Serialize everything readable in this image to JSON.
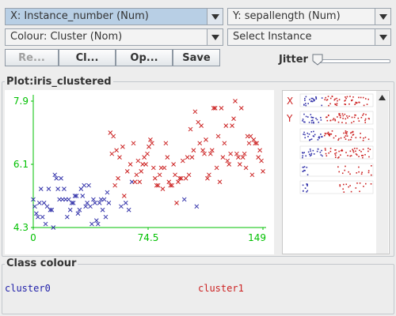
{
  "selectors": {
    "x_axis": "X: Instance_number (Num)",
    "y_axis": "Y: sepallength (Num)",
    "colour": "Colour: Cluster (Nom)",
    "instance": "Select Instance"
  },
  "buttons": {
    "reset": "Re...",
    "clear": "Cl...",
    "open": "Op...",
    "save": "Save"
  },
  "jitter": {
    "label": "Jitter",
    "value": 0
  },
  "plot": {
    "title": "Plot:iris_clustered",
    "side_labels": {
      "x": "X",
      "y": "Y"
    }
  },
  "colors": {
    "cluster0": "#3333aa",
    "cluster1": "#cc2222",
    "axis": "#00c000"
  },
  "class_colour": {
    "title": "Class colour",
    "items": [
      {
        "label": "cluster0",
        "color": "#2222aa"
      },
      {
        "label": "cluster1",
        "color": "#cc2222"
      }
    ]
  },
  "chart_data": {
    "type": "scatter",
    "title": "",
    "xlabel": "",
    "ylabel": "",
    "xlim": [
      0,
      149
    ],
    "ylim": [
      4.3,
      7.9
    ],
    "x_ticks": [
      "0",
      "74.5",
      "149"
    ],
    "y_ticks": [
      "7.9",
      "6.1",
      "4.3"
    ],
    "grid": false,
    "series": [
      {
        "name": "cluster0",
        "points": [
          [
            0,
            5.1
          ],
          [
            1,
            4.9
          ],
          [
            2,
            4.7
          ],
          [
            3,
            4.6
          ],
          [
            4,
            5.0
          ],
          [
            5,
            5.4
          ],
          [
            6,
            4.6
          ],
          [
            7,
            5.0
          ],
          [
            8,
            4.4
          ],
          [
            9,
            4.9
          ],
          [
            10,
            5.4
          ],
          [
            11,
            4.8
          ],
          [
            12,
            4.8
          ],
          [
            13,
            4.3
          ],
          [
            14,
            5.8
          ],
          [
            15,
            5.7
          ],
          [
            16,
            5.4
          ],
          [
            17,
            5.1
          ],
          [
            18,
            5.7
          ],
          [
            19,
            5.1
          ],
          [
            20,
            5.4
          ],
          [
            21,
            5.1
          ],
          [
            22,
            4.6
          ],
          [
            23,
            5.1
          ],
          [
            24,
            4.8
          ],
          [
            25,
            5.0
          ],
          [
            26,
            5.0
          ],
          [
            27,
            5.2
          ],
          [
            28,
            5.2
          ],
          [
            29,
            4.7
          ],
          [
            30,
            4.8
          ],
          [
            31,
            5.4
          ],
          [
            32,
            5.2
          ],
          [
            33,
            5.5
          ],
          [
            34,
            4.9
          ],
          [
            35,
            5.0
          ],
          [
            36,
            5.5
          ],
          [
            37,
            4.9
          ],
          [
            38,
            4.4
          ],
          [
            39,
            5.1
          ],
          [
            40,
            5.0
          ],
          [
            41,
            4.5
          ],
          [
            42,
            4.4
          ],
          [
            43,
            5.0
          ],
          [
            44,
            5.1
          ],
          [
            45,
            4.8
          ],
          [
            46,
            5.1
          ],
          [
            47,
            4.6
          ],
          [
            48,
            5.3
          ],
          [
            49,
            5.0
          ],
          [
            57,
            4.9
          ],
          [
            60,
            5.0
          ],
          [
            62,
            4.8
          ],
          [
            64,
            5.6
          ],
          [
            98,
            5.1
          ],
          [
            106,
            4.9
          ]
        ]
      },
      {
        "name": "cluster1",
        "points": [
          [
            50,
            7.0
          ],
          [
            51,
            6.4
          ],
          [
            52,
            6.9
          ],
          [
            53,
            5.5
          ],
          [
            54,
            6.5
          ],
          [
            55,
            5.7
          ],
          [
            56,
            6.3
          ],
          [
            58,
            6.6
          ],
          [
            59,
            5.2
          ],
          [
            61,
            5.9
          ],
          [
            63,
            6.1
          ],
          [
            65,
            6.7
          ],
          [
            66,
            5.6
          ],
          [
            67,
            5.8
          ],
          [
            68,
            6.2
          ],
          [
            69,
            5.6
          ],
          [
            70,
            5.9
          ],
          [
            71,
            6.1
          ],
          [
            72,
            6.3
          ],
          [
            73,
            6.1
          ],
          [
            74,
            6.4
          ],
          [
            75,
            6.6
          ],
          [
            76,
            6.8
          ],
          [
            77,
            6.7
          ],
          [
            78,
            6.0
          ],
          [
            79,
            5.7
          ],
          [
            80,
            5.5
          ],
          [
            81,
            5.5
          ],
          [
            82,
            5.8
          ],
          [
            83,
            6.0
          ],
          [
            84,
            5.4
          ],
          [
            85,
            6.0
          ],
          [
            86,
            6.7
          ],
          [
            87,
            6.3
          ],
          [
            88,
            5.6
          ],
          [
            89,
            5.5
          ],
          [
            90,
            5.5
          ],
          [
            91,
            6.1
          ],
          [
            92,
            5.8
          ],
          [
            93,
            5.0
          ],
          [
            94,
            5.6
          ],
          [
            95,
            5.7
          ],
          [
            96,
            5.7
          ],
          [
            97,
            6.2
          ],
          [
            99,
            5.7
          ],
          [
            100,
            6.3
          ],
          [
            101,
            5.8
          ],
          [
            102,
            7.1
          ],
          [
            103,
            6.3
          ],
          [
            104,
            6.5
          ],
          [
            105,
            7.6
          ],
          [
            107,
            7.3
          ],
          [
            108,
            6.7
          ],
          [
            109,
            7.2
          ],
          [
            110,
            6.5
          ],
          [
            111,
            6.4
          ],
          [
            112,
            6.8
          ],
          [
            113,
            5.7
          ],
          [
            114,
            5.8
          ],
          [
            115,
            6.4
          ],
          [
            116,
            6.5
          ],
          [
            117,
            7.7
          ],
          [
            118,
            7.7
          ],
          [
            119,
            6.0
          ],
          [
            120,
            6.9
          ],
          [
            121,
            5.6
          ],
          [
            122,
            7.7
          ],
          [
            123,
            6.3
          ],
          [
            124,
            6.7
          ],
          [
            125,
            7.2
          ],
          [
            126,
            6.2
          ],
          [
            127,
            6.1
          ],
          [
            128,
            6.4
          ],
          [
            129,
            7.2
          ],
          [
            130,
            7.4
          ],
          [
            131,
            7.9
          ],
          [
            132,
            6.4
          ],
          [
            133,
            6.3
          ],
          [
            134,
            6.1
          ],
          [
            135,
            7.7
          ],
          [
            136,
            6.3
          ],
          [
            137,
            6.4
          ],
          [
            138,
            6.0
          ],
          [
            139,
            6.9
          ],
          [
            140,
            6.7
          ],
          [
            141,
            6.9
          ],
          [
            142,
            5.8
          ],
          [
            143,
            6.8
          ],
          [
            144,
            6.7
          ],
          [
            145,
            6.7
          ],
          [
            146,
            6.3
          ],
          [
            147,
            6.5
          ],
          [
            148,
            6.2
          ],
          [
            149,
            5.9
          ]
        ]
      }
    ]
  }
}
